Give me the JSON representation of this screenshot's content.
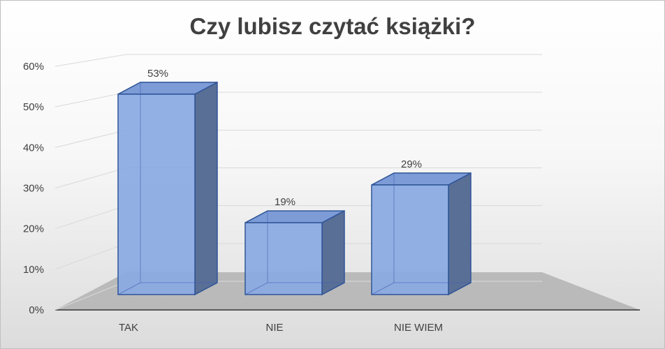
{
  "chart_data": {
    "type": "bar",
    "title": "Czy lubisz czytać książki?",
    "categories": [
      "TAK",
      "NIE",
      "NIE WIEM"
    ],
    "values": [
      53,
      19,
      29
    ],
    "data_labels": [
      "53%",
      "19%",
      "29%"
    ],
    "xlabel": "",
    "ylabel": "",
    "ylim": [
      0,
      60
    ],
    "yticks": [
      "0%",
      "10%",
      "20%",
      "30%",
      "40%",
      "50%",
      "60%"
    ],
    "grid": true,
    "legend": "none",
    "style": "3d-column",
    "colors": {
      "bar_front": "#8aa9e3",
      "bar_side": "#5a6f96",
      "bar_top": "#7d9bd6",
      "bar_edge": "#2f5597",
      "floor": "#b5b5b5"
    }
  }
}
